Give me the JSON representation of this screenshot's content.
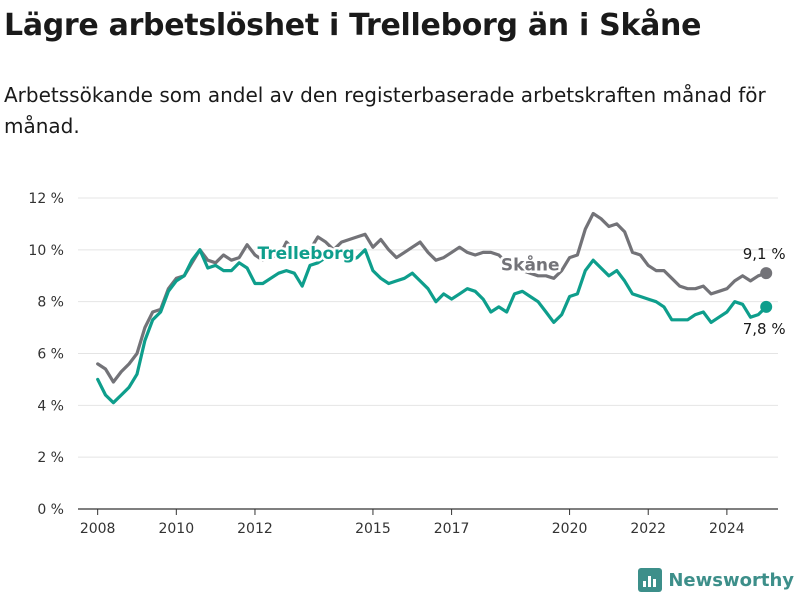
{
  "title": "Lägre arbetslöshet i Trelleborg än i Skåne",
  "subtitle": "Arbetssökande som andel av den registerbaserade arbetskraften månad för månad.",
  "brand": "Newsworthy",
  "colors": {
    "skane": "#737378",
    "trelleborg": "#0e9e8c",
    "brand": "#3d8f8a"
  },
  "chart_data": {
    "type": "line",
    "title": "Lägre arbetslöshet i Trelleborg än i Skåne",
    "xlabel": "",
    "ylabel": "",
    "xlim": [
      2007.5,
      2025.3
    ],
    "ylim": [
      0,
      12
    ],
    "y_ticks": [
      0,
      2,
      4,
      6,
      8,
      10,
      12
    ],
    "y_tick_labels": [
      "0 %",
      "2 %",
      "4 %",
      "6 %",
      "8 %",
      "10 %",
      "12 %"
    ],
    "x_ticks": [
      2008,
      2010,
      2012,
      2015,
      2017,
      2020,
      2022,
      2024
    ],
    "x_tick_labels": [
      "2008",
      "2010",
      "2012",
      "2015",
      "2017",
      "2020",
      "2022",
      "2024"
    ],
    "grid": true,
    "series": [
      {
        "name": "Skåne",
        "label": "Skåne",
        "end_label": "9,1 %",
        "color": "#737378",
        "points": [
          [
            2008.0,
            5.6
          ],
          [
            2008.2,
            5.4
          ],
          [
            2008.4,
            4.9
          ],
          [
            2008.6,
            5.3
          ],
          [
            2008.8,
            5.6
          ],
          [
            2009.0,
            6.0
          ],
          [
            2009.2,
            7.0
          ],
          [
            2009.4,
            7.6
          ],
          [
            2009.6,
            7.7
          ],
          [
            2009.8,
            8.5
          ],
          [
            2010.0,
            8.9
          ],
          [
            2010.2,
            9.0
          ],
          [
            2010.4,
            9.5
          ],
          [
            2010.6,
            10.0
          ],
          [
            2010.8,
            9.6
          ],
          [
            2011.0,
            9.5
          ],
          [
            2011.2,
            9.8
          ],
          [
            2011.4,
            9.6
          ],
          [
            2011.6,
            9.7
          ],
          [
            2011.8,
            10.2
          ],
          [
            2012.0,
            9.8
          ],
          [
            2012.2,
            9.6
          ],
          [
            2012.4,
            9.8
          ],
          [
            2012.6,
            9.7
          ],
          [
            2012.8,
            10.3
          ],
          [
            2013.0,
            10.0
          ],
          [
            2013.2,
            9.9
          ],
          [
            2013.4,
            10.0
          ],
          [
            2013.6,
            10.5
          ],
          [
            2013.8,
            10.3
          ],
          [
            2014.0,
            10.0
          ],
          [
            2014.2,
            10.3
          ],
          [
            2014.4,
            10.4
          ],
          [
            2014.6,
            10.5
          ],
          [
            2014.8,
            10.6
          ],
          [
            2015.0,
            10.1
          ],
          [
            2015.2,
            10.4
          ],
          [
            2015.4,
            10.0
          ],
          [
            2015.6,
            9.7
          ],
          [
            2015.8,
            9.9
          ],
          [
            2016.0,
            10.1
          ],
          [
            2016.2,
            10.3
          ],
          [
            2016.4,
            9.9
          ],
          [
            2016.6,
            9.6
          ],
          [
            2016.8,
            9.7
          ],
          [
            2017.0,
            9.9
          ],
          [
            2017.2,
            10.1
          ],
          [
            2017.4,
            9.9
          ],
          [
            2017.6,
            9.8
          ],
          [
            2017.8,
            9.9
          ],
          [
            2018.0,
            9.9
          ],
          [
            2018.2,
            9.8
          ],
          [
            2018.4,
            9.5
          ],
          [
            2018.6,
            9.3
          ],
          [
            2018.8,
            9.2
          ],
          [
            2019.0,
            9.1
          ],
          [
            2019.2,
            9.0
          ],
          [
            2019.4,
            9.0
          ],
          [
            2019.6,
            8.9
          ],
          [
            2019.8,
            9.2
          ],
          [
            2020.0,
            9.7
          ],
          [
            2020.2,
            9.8
          ],
          [
            2020.4,
            10.8
          ],
          [
            2020.6,
            11.4
          ],
          [
            2020.8,
            11.2
          ],
          [
            2021.0,
            10.9
          ],
          [
            2021.2,
            11.0
          ],
          [
            2021.4,
            10.7
          ],
          [
            2021.6,
            9.9
          ],
          [
            2021.8,
            9.8
          ],
          [
            2022.0,
            9.4
          ],
          [
            2022.2,
            9.2
          ],
          [
            2022.4,
            9.2
          ],
          [
            2022.6,
            8.9
          ],
          [
            2022.8,
            8.6
          ],
          [
            2023.0,
            8.5
          ],
          [
            2023.2,
            8.5
          ],
          [
            2023.4,
            8.6
          ],
          [
            2023.6,
            8.3
          ],
          [
            2023.8,
            8.4
          ],
          [
            2024.0,
            8.5
          ],
          [
            2024.2,
            8.8
          ],
          [
            2024.4,
            9.0
          ],
          [
            2024.6,
            8.8
          ],
          [
            2024.8,
            9.0
          ],
          [
            2025.0,
            9.1
          ]
        ]
      },
      {
        "name": "Trelleborg",
        "label": "Trelleborg",
        "end_label": "7,8 %",
        "color": "#0e9e8c",
        "points": [
          [
            2008.0,
            5.0
          ],
          [
            2008.2,
            4.4
          ],
          [
            2008.4,
            4.1
          ],
          [
            2008.6,
            4.4
          ],
          [
            2008.8,
            4.7
          ],
          [
            2009.0,
            5.2
          ],
          [
            2009.2,
            6.5
          ],
          [
            2009.4,
            7.3
          ],
          [
            2009.6,
            7.6
          ],
          [
            2009.8,
            8.4
          ],
          [
            2010.0,
            8.8
          ],
          [
            2010.2,
            9.0
          ],
          [
            2010.4,
            9.6
          ],
          [
            2010.6,
            10.0
          ],
          [
            2010.8,
            9.3
          ],
          [
            2011.0,
            9.4
          ],
          [
            2011.2,
            9.2
          ],
          [
            2011.4,
            9.2
          ],
          [
            2011.6,
            9.5
          ],
          [
            2011.8,
            9.3
          ],
          [
            2012.0,
            8.7
          ],
          [
            2012.2,
            8.7
          ],
          [
            2012.4,
            8.9
          ],
          [
            2012.6,
            9.1
          ],
          [
            2012.8,
            9.2
          ],
          [
            2013.0,
            9.1
          ],
          [
            2013.2,
            8.6
          ],
          [
            2013.4,
            9.4
          ],
          [
            2013.6,
            9.5
          ],
          [
            2013.8,
            9.7
          ],
          [
            2014.0,
            9.9
          ],
          [
            2014.2,
            9.8
          ],
          [
            2014.4,
            9.6
          ],
          [
            2014.6,
            9.7
          ],
          [
            2014.8,
            10.0
          ],
          [
            2015.0,
            9.2
          ],
          [
            2015.2,
            8.9
          ],
          [
            2015.4,
            8.7
          ],
          [
            2015.6,
            8.8
          ],
          [
            2015.8,
            8.9
          ],
          [
            2016.0,
            9.1
          ],
          [
            2016.2,
            8.8
          ],
          [
            2016.4,
            8.5
          ],
          [
            2016.6,
            8.0
          ],
          [
            2016.8,
            8.3
          ],
          [
            2017.0,
            8.1
          ],
          [
            2017.2,
            8.3
          ],
          [
            2017.4,
            8.5
          ],
          [
            2017.6,
            8.4
          ],
          [
            2017.8,
            8.1
          ],
          [
            2018.0,
            7.6
          ],
          [
            2018.2,
            7.8
          ],
          [
            2018.4,
            7.6
          ],
          [
            2018.6,
            8.3
          ],
          [
            2018.8,
            8.4
          ],
          [
            2019.0,
            8.2
          ],
          [
            2019.2,
            8.0
          ],
          [
            2019.4,
            7.6
          ],
          [
            2019.6,
            7.2
          ],
          [
            2019.8,
            7.5
          ],
          [
            2020.0,
            8.2
          ],
          [
            2020.2,
            8.3
          ],
          [
            2020.4,
            9.2
          ],
          [
            2020.6,
            9.6
          ],
          [
            2020.8,
            9.3
          ],
          [
            2021.0,
            9.0
          ],
          [
            2021.2,
            9.2
          ],
          [
            2021.4,
            8.8
          ],
          [
            2021.6,
            8.3
          ],
          [
            2021.8,
            8.2
          ],
          [
            2022.0,
            8.1
          ],
          [
            2022.2,
            8.0
          ],
          [
            2022.4,
            7.8
          ],
          [
            2022.6,
            7.3
          ],
          [
            2022.8,
            7.3
          ],
          [
            2023.0,
            7.3
          ],
          [
            2023.2,
            7.5
          ],
          [
            2023.4,
            7.6
          ],
          [
            2023.6,
            7.2
          ],
          [
            2023.8,
            7.4
          ],
          [
            2024.0,
            7.6
          ],
          [
            2024.2,
            8.0
          ],
          [
            2024.4,
            7.9
          ],
          [
            2024.6,
            7.4
          ],
          [
            2024.8,
            7.5
          ],
          [
            2025.0,
            7.8
          ]
        ]
      }
    ]
  }
}
